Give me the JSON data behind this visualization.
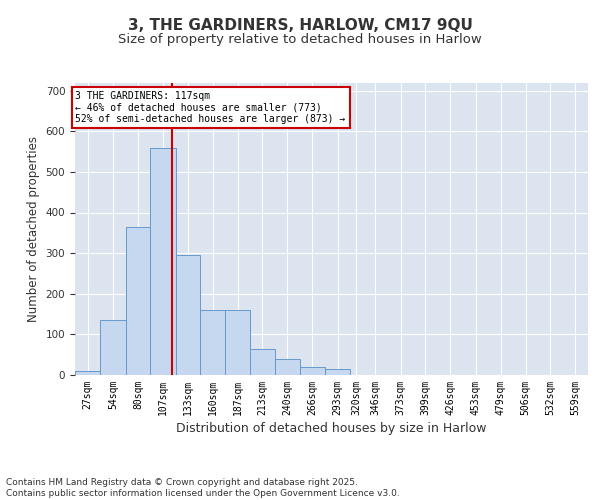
{
  "title_line1": "3, THE GARDINERS, HARLOW, CM17 9QU",
  "title_line2": "Size of property relative to detached houses in Harlow",
  "xlabel": "Distribution of detached houses by size in Harlow",
  "ylabel": "Number of detached properties",
  "background_color": "#dce4f0",
  "bar_color": "#c5d8f0",
  "bar_edge_color": "#6699cc",
  "vline_value": 117,
  "vline_color": "#cc0000",
  "annotation_text": "3 THE GARDINERS: 117sqm\n← 46% of detached houses are smaller (773)\n52% of semi-detached houses are larger (873) →",
  "categories": [
    "27sqm",
    "54sqm",
    "80sqm",
    "107sqm",
    "133sqm",
    "160sqm",
    "187sqm",
    "213sqm",
    "240sqm",
    "266sqm",
    "293sqm",
    "320sqm",
    "346sqm",
    "373sqm",
    "399sqm",
    "426sqm",
    "453sqm",
    "479sqm",
    "506sqm",
    "532sqm",
    "559sqm"
  ],
  "bin_edges": [
    13.5,
    40.5,
    67.5,
    93.5,
    120.5,
    146.5,
    173.5,
    199.5,
    226.5,
    252.5,
    279.5,
    306.5,
    319.5,
    346.5,
    373.5,
    399.5,
    426.5,
    453.5,
    479.5,
    506.5,
    532.5,
    559.5
  ],
  "values": [
    10,
    135,
    365,
    560,
    295,
    160,
    160,
    65,
    40,
    20,
    15,
    0,
    0,
    0,
    0,
    0,
    0,
    0,
    0,
    0,
    0
  ],
  "ylim": [
    0,
    720
  ],
  "yticks": [
    0,
    100,
    200,
    300,
    400,
    500,
    600,
    700
  ],
  "footer_text": "Contains HM Land Registry data © Crown copyright and database right 2025.\nContains public sector information licensed under the Open Government Licence v3.0.",
  "title_fontsize": 11,
  "subtitle_fontsize": 9.5,
  "axis_label_fontsize": 8.5,
  "tick_fontsize": 7.5,
  "footer_fontsize": 6.5
}
